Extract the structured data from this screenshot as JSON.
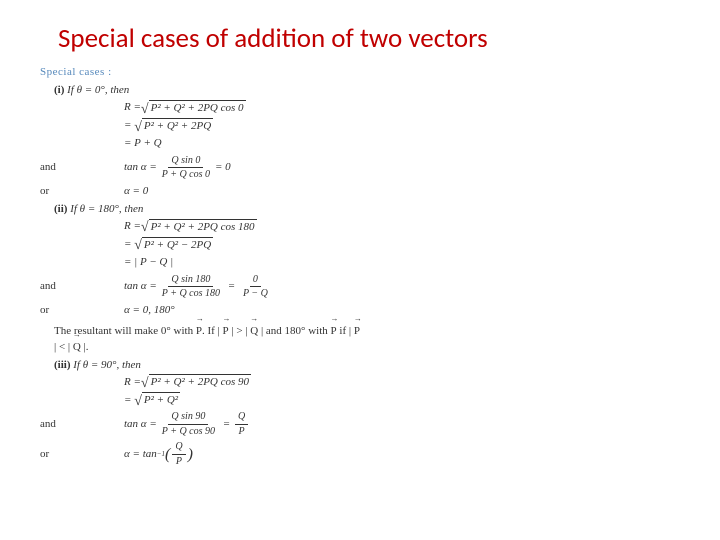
{
  "title": "Special cases of addition of two vectors",
  "section_label": "Special cases :",
  "case1": {
    "heading_prefix": "(i)",
    "heading": "If θ = 0°, then",
    "r_eq": "R = ",
    "r_body1": "P² + Q² + 2PQ cos 0",
    "r_body2": "P² + Q² + 2PQ",
    "r_final": "= P + Q",
    "and": "and",
    "tan": "tan α =",
    "tan_num": "Q sin 0",
    "tan_den": "P + Q cos 0",
    "tan_eq0": "= 0",
    "or": "or",
    "alpha": "α = 0"
  },
  "case2": {
    "heading_prefix": "(ii)",
    "heading": "If θ = 180°, then",
    "r_eq": "R = ",
    "r_body1": "P² + Q² + 2PQ cos 180",
    "r_body2": "P² + Q² − 2PQ",
    "r_final": "= | P − Q |",
    "and": "and",
    "tan": "tan α =",
    "tan_num": "Q sin 180",
    "tan_den": "P + Q cos 180",
    "tan_num2": "0",
    "tan_den2": "P − Q",
    "or": "or",
    "alpha": "α = 0, 180°"
  },
  "resultant_text1": "The resultant will make 0° with ",
  "resultant_p": "P",
  "resultant_if": " If",
  "resultant_text2a": "| ",
  "resultant_text2b": " | > | ",
  "resultant_text2c": " | and 180° with ",
  "resultant_text2d": " if | ",
  "resultant_text2e": " | < | ",
  "resultant_text2f": " |.",
  "resultant_q": "Q",
  "case3": {
    "heading_prefix": "(iii)",
    "heading": "If θ = 90°, then",
    "r_eq": "R = ",
    "r_body1": "P² + Q² + 2PQ cos 90",
    "r_body2": "P² + Q²",
    "and": "and",
    "tan": "tan α =",
    "tan_num": "Q sin 90",
    "tan_den": "P + Q cos 90",
    "tan_num2": "Q",
    "tan_den2": "P",
    "or": "or",
    "alpha_pre": "α = tan",
    "alpha_sup": "−1",
    "alpha_paren_num": "Q",
    "alpha_paren_den": "P"
  }
}
